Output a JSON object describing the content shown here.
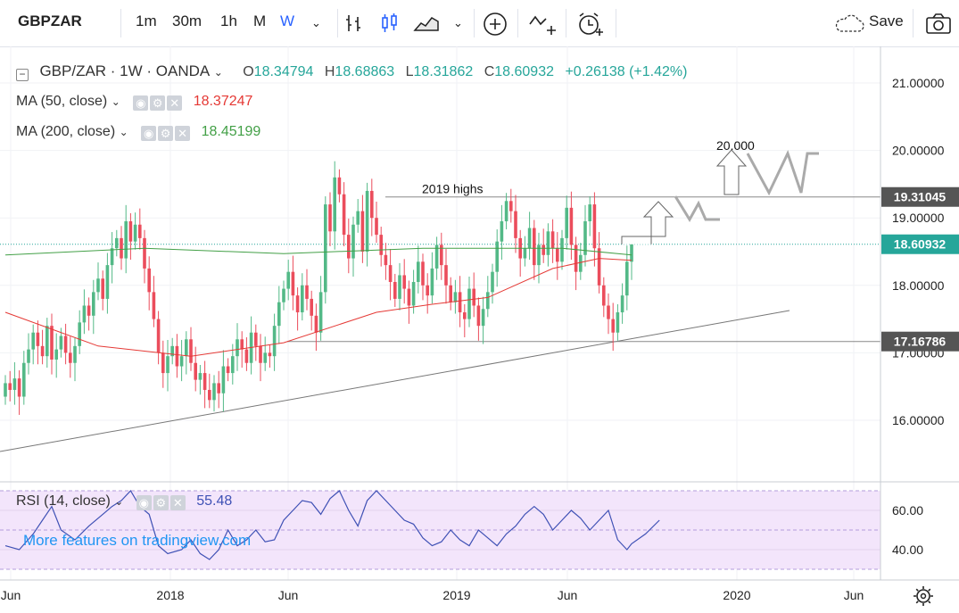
{
  "toolbar": {
    "symbol": "GBPZAR",
    "intervals": [
      "1m",
      "30m",
      "1h",
      "M",
      "W"
    ],
    "active_interval": "W",
    "save_label": "Save"
  },
  "legend": {
    "title": "GBP/ZAR · 1W · OANDA",
    "o_label": "O",
    "o": "18.34794",
    "h_label": "H",
    "h": "18.68863",
    "l_label": "L",
    "l": "18.31862",
    "c_label": "C",
    "c": "18.60932",
    "change": "+0.26138 (+1.42%)",
    "ma50_label": "MA (50, close)",
    "ma50_value": "18.37247",
    "ma200_label": "MA (200, close)",
    "ma200_value": "18.45199",
    "rsi_label": "RSI (14, close)",
    "rsi_value": "55.48",
    "promo": "More features on tradingview.com"
  },
  "colors": {
    "up": "#53b987",
    "down": "#eb4d5c",
    "ma50": "#e53935",
    "ma200": "#43a047",
    "rsi": "#3f51b5",
    "rsi_band": "#f3e5fb",
    "price_tag": "#26a69a",
    "level_tag": "#555555"
  },
  "annotations": {
    "highs_label": "2019 highs",
    "target_label": "20.000"
  },
  "chart_data": {
    "type": "candlestick",
    "title": "GBP/ZAR · 1W · OANDA",
    "y_ticks": [
      "21.00000",
      "20.00000",
      "19.00000",
      "18.00000",
      "17.00000",
      "16.00000"
    ],
    "x_ticks": [
      "Jun",
      "2018",
      "Jun",
      "2019",
      "Jun",
      "2020",
      "Jun"
    ],
    "ylim": [
      15.0,
      21.5
    ],
    "levels": {
      "resistance": "19.31045",
      "support": "17.16786",
      "last": "18.60932"
    },
    "rsi_ticks": [
      "60.00",
      "40.00"
    ],
    "rsi_band": [
      30,
      70
    ],
    "closes": [
      16.55,
      16.45,
      16.62,
      16.35,
      16.85,
      17.05,
      17.3,
      17.1,
      16.95,
      17.4,
      16.9,
      17.05,
      17.25,
      17.0,
      16.85,
      17.1,
      17.45,
      17.7,
      17.55,
      17.9,
      18.1,
      17.8,
      18.3,
      18.55,
      18.7,
      18.4,
      18.95,
      18.65,
      18.9,
      18.7,
      18.25,
      17.9,
      17.5,
      17.0,
      16.7,
      16.95,
      17.1,
      16.8,
      16.95,
      17.2,
      16.85,
      16.6,
      16.7,
      16.45,
      16.3,
      16.55,
      16.4,
      16.8,
      16.7,
      16.95,
      17.2,
      17.05,
      16.85,
      17.3,
      17.1,
      16.85,
      17.0,
      16.95,
      17.4,
      17.75,
      17.95,
      18.2,
      17.85,
      17.6,
      18.0,
      17.8,
      17.55,
      17.3,
      17.9,
      19.2,
      18.8,
      19.6,
      19.35,
      18.75,
      18.4,
      18.9,
      19.1,
      18.5,
      19.4,
      19.0,
      18.75,
      18.45,
      18.3,
      18.05,
      17.8,
      18.15,
      17.95,
      17.7,
      18.05,
      18.35,
      18.0,
      17.85,
      18.25,
      18.6,
      18.3,
      18.0,
      17.75,
      17.9,
      17.6,
      17.5,
      17.95,
      17.7,
      17.4,
      17.65,
      17.9,
      18.2,
      18.65,
      18.95,
      19.25,
      19.1,
      18.7,
      18.4,
      18.55,
      18.85,
      18.3,
      18.6,
      18.45,
      18.8,
      18.55,
      18.35,
      18.7,
      19.15,
      18.6,
      18.2,
      18.45,
      18.95,
      19.2,
      18.55,
      18.0,
      17.7,
      17.5,
      17.3,
      17.6,
      17.85,
      18.35,
      18.61
    ],
    "ma50": [
      [
        0,
        17.6
      ],
      [
        20,
        17.1
      ],
      [
        40,
        16.95
      ],
      [
        60,
        17.15
      ],
      [
        80,
        17.6
      ],
      [
        92,
        17.72
      ],
      [
        104,
        17.82
      ],
      [
        118,
        18.25
      ],
      [
        128,
        18.4
      ],
      [
        135,
        18.37
      ]
    ],
    "ma200": [
      [
        0,
        18.45
      ],
      [
        30,
        18.55
      ],
      [
        60,
        18.47
      ],
      [
        90,
        18.55
      ],
      [
        120,
        18.55
      ],
      [
        135,
        18.45
      ]
    ],
    "rsi": [
      [
        0,
        42
      ],
      [
        3,
        40
      ],
      [
        6,
        48
      ],
      [
        8,
        55
      ],
      [
        10,
        62
      ],
      [
        12,
        50
      ],
      [
        15,
        45
      ],
      [
        18,
        52
      ],
      [
        21,
        58
      ],
      [
        23,
        62
      ],
      [
        25,
        65
      ],
      [
        27,
        70
      ],
      [
        29,
        62
      ],
      [
        31,
        58
      ],
      [
        33,
        42
      ],
      [
        35,
        38
      ],
      [
        38,
        40
      ],
      [
        40,
        45
      ],
      [
        42,
        38
      ],
      [
        44,
        35
      ],
      [
        46,
        40
      ],
      [
        48,
        50
      ],
      [
        50,
        42
      ],
      [
        52,
        45
      ],
      [
        54,
        50
      ],
      [
        56,
        44
      ],
      [
        58,
        45
      ],
      [
        60,
        55
      ],
      [
        62,
        60
      ],
      [
        64,
        65
      ],
      [
        66,
        64
      ],
      [
        68,
        58
      ],
      [
        70,
        66
      ],
      [
        72,
        70
      ],
      [
        74,
        60
      ],
      [
        76,
        52
      ],
      [
        78,
        65
      ],
      [
        80,
        70
      ],
      [
        82,
        65
      ],
      [
        84,
        60
      ],
      [
        86,
        55
      ],
      [
        88,
        53
      ],
      [
        90,
        46
      ],
      [
        92,
        42
      ],
      [
        94,
        44
      ],
      [
        96,
        50
      ],
      [
        98,
        45
      ],
      [
        100,
        42
      ],
      [
        102,
        50
      ],
      [
        104,
        46
      ],
      [
        106,
        42
      ],
      [
        108,
        48
      ],
      [
        110,
        52
      ],
      [
        112,
        58
      ],
      [
        114,
        62
      ],
      [
        116,
        58
      ],
      [
        118,
        50
      ],
      [
        120,
        55
      ],
      [
        122,
        60
      ],
      [
        124,
        56
      ],
      [
        126,
        50
      ],
      [
        128,
        55
      ],
      [
        130,
        60
      ],
      [
        132,
        45
      ],
      [
        134,
        40
      ],
      [
        135,
        43
      ],
      [
        138,
        48
      ],
      [
        141,
        55
      ]
    ]
  }
}
